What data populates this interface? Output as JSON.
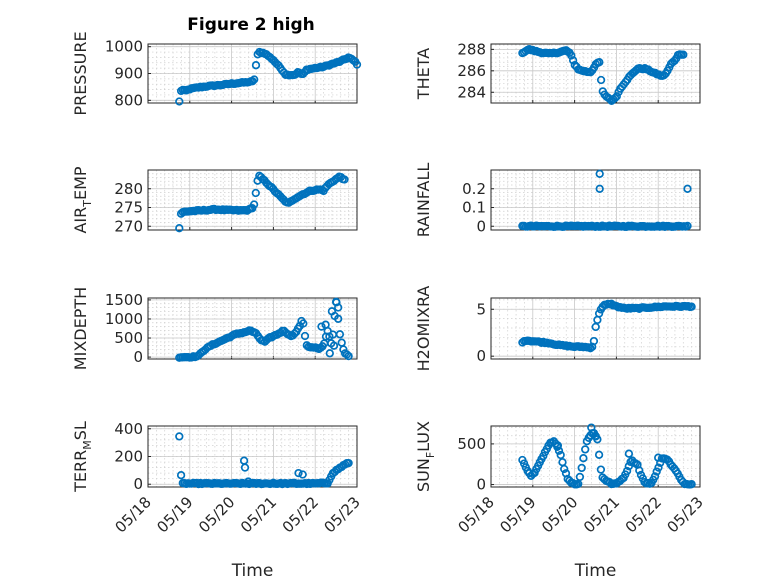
{
  "figure_title": "Figure 2 high",
  "chart_data": [
    {
      "id": "pressure",
      "type": "scatter",
      "ylabel": "PRESSURE",
      "ylim": [
        790,
        1010
      ],
      "yticks": [
        800,
        900,
        1000
      ],
      "xlim": [
        0,
        5
      ],
      "xticks": [
        0,
        1,
        2,
        3,
        4,
        5
      ],
      "xticklabels": [
        "",
        "",
        "",
        "",
        "",
        ""
      ],
      "xlabel": "",
      "title": "Figure 2 high",
      "anchors": [
        [
          0.75,
          795
        ],
        [
          0.78,
          830
        ],
        [
          0.8,
          840
        ],
        [
          0.9,
          835
        ],
        [
          1.0,
          842
        ],
        [
          1.2,
          848
        ],
        [
          1.4,
          852
        ],
        [
          1.6,
          855
        ],
        [
          1.8,
          858
        ],
        [
          2.0,
          862
        ],
        [
          2.2,
          865
        ],
        [
          2.4,
          868
        ],
        [
          2.5,
          870
        ],
        [
          2.55,
          880
        ],
        [
          2.58,
          925
        ],
        [
          2.6,
          960
        ],
        [
          2.65,
          980
        ],
        [
          2.8,
          975
        ],
        [
          3.0,
          950
        ],
        [
          3.2,
          915
        ],
        [
          3.3,
          895
        ],
        [
          3.5,
          895
        ],
        [
          3.6,
          905
        ],
        [
          3.7,
          895
        ],
        [
          3.8,
          915
        ],
        [
          4.0,
          920
        ],
        [
          4.2,
          925
        ],
        [
          4.4,
          935
        ],
        [
          4.6,
          945
        ],
        [
          4.8,
          960
        ],
        [
          4.95,
          945
        ],
        [
          5.0,
          935
        ]
      ]
    },
    {
      "id": "theta",
      "type": "scatter",
      "ylabel": "THETA",
      "ylim": [
        283,
        288.5
      ],
      "yticks": [
        284,
        286,
        288
      ],
      "xlim": [
        0,
        5
      ],
      "xticks": [
        0,
        1,
        2,
        3,
        4,
        5
      ],
      "xticklabels": [
        "",
        "",
        "",
        "",
        "",
        ""
      ],
      "xlabel": "",
      "anchors": [
        [
          0.75,
          287.6
        ],
        [
          0.8,
          287.8
        ],
        [
          0.9,
          288.0
        ],
        [
          1.0,
          287.9
        ],
        [
          1.2,
          287.7
        ],
        [
          1.4,
          287.6
        ],
        [
          1.6,
          287.7
        ],
        [
          1.8,
          287.9
        ],
        [
          1.9,
          287.6
        ],
        [
          2.0,
          286.6
        ],
        [
          2.1,
          286.1
        ],
        [
          2.2,
          286.0
        ],
        [
          2.3,
          285.9
        ],
        [
          2.4,
          285.9
        ],
        [
          2.5,
          286.6
        ],
        [
          2.6,
          286.8
        ],
        [
          2.65,
          284.3
        ],
        [
          2.7,
          283.8
        ],
        [
          2.8,
          283.5
        ],
        [
          2.9,
          283.2
        ],
        [
          3.0,
          283.6
        ],
        [
          3.1,
          284.4
        ],
        [
          3.3,
          285.4
        ],
        [
          3.5,
          286.2
        ],
        [
          3.7,
          286.2
        ],
        [
          3.9,
          285.8
        ],
        [
          4.1,
          285.5
        ],
        [
          4.2,
          285.8
        ],
        [
          4.3,
          286.6
        ],
        [
          4.4,
          287.0
        ],
        [
          4.5,
          287.6
        ],
        [
          4.6,
          287.5
        ]
      ]
    },
    {
      "id": "airtemp",
      "type": "scatter",
      "ylabel": "AIR_TEMP",
      "ylim": [
        269,
        285
      ],
      "yticks": [
        270,
        275,
        280
      ],
      "xlim": [
        0,
        5
      ],
      "xticks": [
        0,
        1,
        2,
        3,
        4,
        5
      ],
      "xticklabels": [
        "",
        "",
        "",
        "",
        "",
        ""
      ],
      "xlabel": "",
      "anchors": [
        [
          0.75,
          269.5
        ],
        [
          0.78,
          273.3
        ],
        [
          0.85,
          273.8
        ],
        [
          1.0,
          274.0
        ],
        [
          1.3,
          274.2
        ],
        [
          1.6,
          274.5
        ],
        [
          1.9,
          274.3
        ],
        [
          2.2,
          274.2
        ],
        [
          2.4,
          274.3
        ],
        [
          2.5,
          275.0
        ],
        [
          2.55,
          276.0
        ],
        [
          2.6,
          281.0
        ],
        [
          2.65,
          283.5
        ],
        [
          2.8,
          282.0
        ],
        [
          3.0,
          279.8
        ],
        [
          3.2,
          277.5
        ],
        [
          3.35,
          276.0
        ],
        [
          3.5,
          277.3
        ],
        [
          3.7,
          278.5
        ],
        [
          3.9,
          279.5
        ],
        [
          4.1,
          279.8
        ],
        [
          4.2,
          279.5
        ],
        [
          4.3,
          281.0
        ],
        [
          4.45,
          282.2
        ],
        [
          4.6,
          283.3
        ],
        [
          4.7,
          282.3
        ]
      ]
    },
    {
      "id": "rainfall",
      "type": "scatter",
      "ylabel": "RAINFALL",
      "ylim": [
        -0.02,
        0.3
      ],
      "yticks": [
        0,
        0.1,
        0.2
      ],
      "xlim": [
        0,
        5
      ],
      "xticks": [
        0,
        1,
        2,
        3,
        4,
        5
      ],
      "xticklabels": [
        "",
        "",
        "",
        "",
        "",
        ""
      ],
      "xlabel": "",
      "anchors": [
        [
          0.75,
          0
        ],
        [
          4.7,
          0
        ]
      ],
      "extra_points": [
        [
          2.6,
          0.28
        ],
        [
          2.6,
          0.2
        ],
        [
          4.7,
          0.2
        ]
      ]
    },
    {
      "id": "mixdepth",
      "type": "scatter",
      "ylabel": "MIXDEPTH",
      "ylim": [
        -50,
        1550
      ],
      "yticks": [
        0,
        500,
        1000,
        1500
      ],
      "xlim": [
        0,
        5
      ],
      "xticks": [
        0,
        1,
        2,
        3,
        4,
        5
      ],
      "xticklabels": [
        "",
        "",
        "",
        "",
        "",
        ""
      ],
      "xlabel": "",
      "anchors": [
        [
          0.75,
          0
        ],
        [
          1.0,
          0
        ],
        [
          1.2,
          20
        ],
        [
          1.3,
          150
        ],
        [
          1.5,
          300
        ],
        [
          1.7,
          400
        ],
        [
          1.9,
          500
        ],
        [
          2.1,
          600
        ],
        [
          2.3,
          650
        ],
        [
          2.45,
          700
        ],
        [
          2.6,
          600
        ],
        [
          2.7,
          450
        ],
        [
          2.8,
          400
        ],
        [
          2.9,
          500
        ],
        [
          3.1,
          600
        ],
        [
          3.25,
          700
        ],
        [
          3.4,
          550
        ],
        [
          3.5,
          600
        ],
        [
          3.6,
          750
        ],
        [
          3.7,
          1000
        ],
        [
          3.75,
          600
        ],
        [
          3.8,
          300
        ],
        [
          3.9,
          250
        ],
        [
          4.0,
          250
        ],
        [
          4.1,
          200
        ],
        [
          4.2,
          300
        ],
        [
          4.3,
          700
        ],
        [
          4.4,
          300
        ],
        [
          4.5,
          1500
        ],
        [
          4.55,
          1000
        ],
        [
          4.6,
          500
        ],
        [
          4.7,
          100
        ],
        [
          4.8,
          40
        ]
      ],
      "extra_points": [
        [
          4.15,
          800
        ],
        [
          4.25,
          850
        ],
        [
          4.4,
          1200
        ],
        [
          4.5,
          1450
        ],
        [
          4.55,
          1300
        ],
        [
          4.35,
          100
        ],
        [
          4.45,
          300
        ]
      ]
    },
    {
      "id": "h2omixra",
      "type": "scatter",
      "ylabel": "H2OMIXRA",
      "ylim": [
        -0.3,
        6.2
      ],
      "yticks": [
        0,
        5
      ],
      "xlim": [
        0,
        5
      ],
      "xticks": [
        0,
        1,
        2,
        3,
        4,
        5
      ],
      "xticklabels": [
        "",
        "",
        "",
        "",
        "",
        ""
      ],
      "xlabel": "",
      "anchors": [
        [
          0.75,
          1.4
        ],
        [
          0.8,
          1.7
        ],
        [
          1.0,
          1.6
        ],
        [
          1.2,
          1.5
        ],
        [
          1.4,
          1.4
        ],
        [
          1.6,
          1.2
        ],
        [
          1.8,
          1.1
        ],
        [
          2.0,
          1.0
        ],
        [
          2.2,
          1.0
        ],
        [
          2.4,
          0.9
        ],
        [
          2.45,
          1.2
        ],
        [
          2.5,
          3.0
        ],
        [
          2.55,
          4.0
        ],
        [
          2.6,
          4.8
        ],
        [
          2.7,
          5.4
        ],
        [
          2.85,
          5.6
        ],
        [
          3.0,
          5.3
        ],
        [
          3.2,
          5.1
        ],
        [
          3.5,
          5.1
        ],
        [
          3.8,
          5.2
        ],
        [
          4.2,
          5.3
        ],
        [
          4.6,
          5.3
        ],
        [
          4.8,
          5.3
        ]
      ]
    },
    {
      "id": "terr_msl",
      "type": "scatter",
      "ylabel": "TERR_MSL",
      "ylim": [
        -20,
        420
      ],
      "yticks": [
        0,
        200,
        400
      ],
      "xlim": [
        0,
        5
      ],
      "xticks": [
        0,
        1,
        2,
        3,
        4,
        5
      ],
      "xticklabels": [
        "05/18",
        "05/19",
        "05/20",
        "05/21",
        "05/22",
        "05/23"
      ],
      "xlabel": "Time",
      "anchors": [
        [
          0.75,
          345
        ],
        [
          0.8,
          5
        ],
        [
          4.0,
          5
        ],
        [
          4.3,
          10
        ],
        [
          4.4,
          70
        ],
        [
          4.5,
          100
        ],
        [
          4.6,
          120
        ],
        [
          4.7,
          140
        ],
        [
          4.8,
          155
        ]
      ],
      "extra_points": [
        [
          2.3,
          170
        ],
        [
          2.32,
          120
        ],
        [
          2.4,
          20
        ],
        [
          3.5,
          10
        ],
        [
          3.6,
          80
        ],
        [
          3.7,
          70
        ],
        [
          3.0,
          10
        ],
        [
          1.5,
          5
        ]
      ]
    },
    {
      "id": "sun_flux",
      "type": "scatter",
      "ylabel": "SUN_FLUX",
      "ylim": [
        -30,
        720
      ],
      "yticks": [
        0,
        500
      ],
      "xlim": [
        0,
        5
      ],
      "xticks": [
        0,
        1,
        2,
        3,
        4,
        5
      ],
      "xticklabels": [
        "05/18",
        "05/19",
        "05/20",
        "05/21",
        "05/22",
        "05/23"
      ],
      "xlabel": "Time",
      "anchors": [
        [
          0.75,
          300
        ],
        [
          0.85,
          200
        ],
        [
          0.95,
          100
        ],
        [
          1.05,
          150
        ],
        [
          1.2,
          300
        ],
        [
          1.4,
          500
        ],
        [
          1.5,
          540
        ],
        [
          1.55,
          500
        ],
        [
          1.65,
          400
        ],
        [
          1.75,
          200
        ],
        [
          1.85,
          50
        ],
        [
          2.0,
          5
        ],
        [
          2.1,
          10
        ],
        [
          2.2,
          300
        ],
        [
          2.3,
          550
        ],
        [
          2.45,
          650
        ],
        [
          2.55,
          550
        ],
        [
          2.6,
          300
        ],
        [
          2.65,
          100
        ],
        [
          2.75,
          50
        ],
        [
          2.9,
          5
        ],
        [
          3.0,
          10
        ],
        [
          3.2,
          100
        ],
        [
          3.35,
          300
        ],
        [
          3.5,
          250
        ],
        [
          3.6,
          100
        ],
        [
          3.7,
          10
        ],
        [
          3.85,
          20
        ],
        [
          4.0,
          200
        ],
        [
          4.1,
          330
        ],
        [
          4.2,
          320
        ],
        [
          4.3,
          250
        ],
        [
          4.45,
          150
        ],
        [
          4.55,
          50
        ],
        [
          4.65,
          5
        ],
        [
          4.8,
          10
        ]
      ],
      "extra_points": [
        [
          2.4,
          700
        ],
        [
          2.5,
          600
        ],
        [
          1.6,
          480
        ],
        [
          3.3,
          380
        ],
        [
          4.0,
          330
        ]
      ]
    }
  ],
  "colors": {
    "marker": "#0072bd",
    "axis": "#262626",
    "grid": "#c8c8c8"
  }
}
